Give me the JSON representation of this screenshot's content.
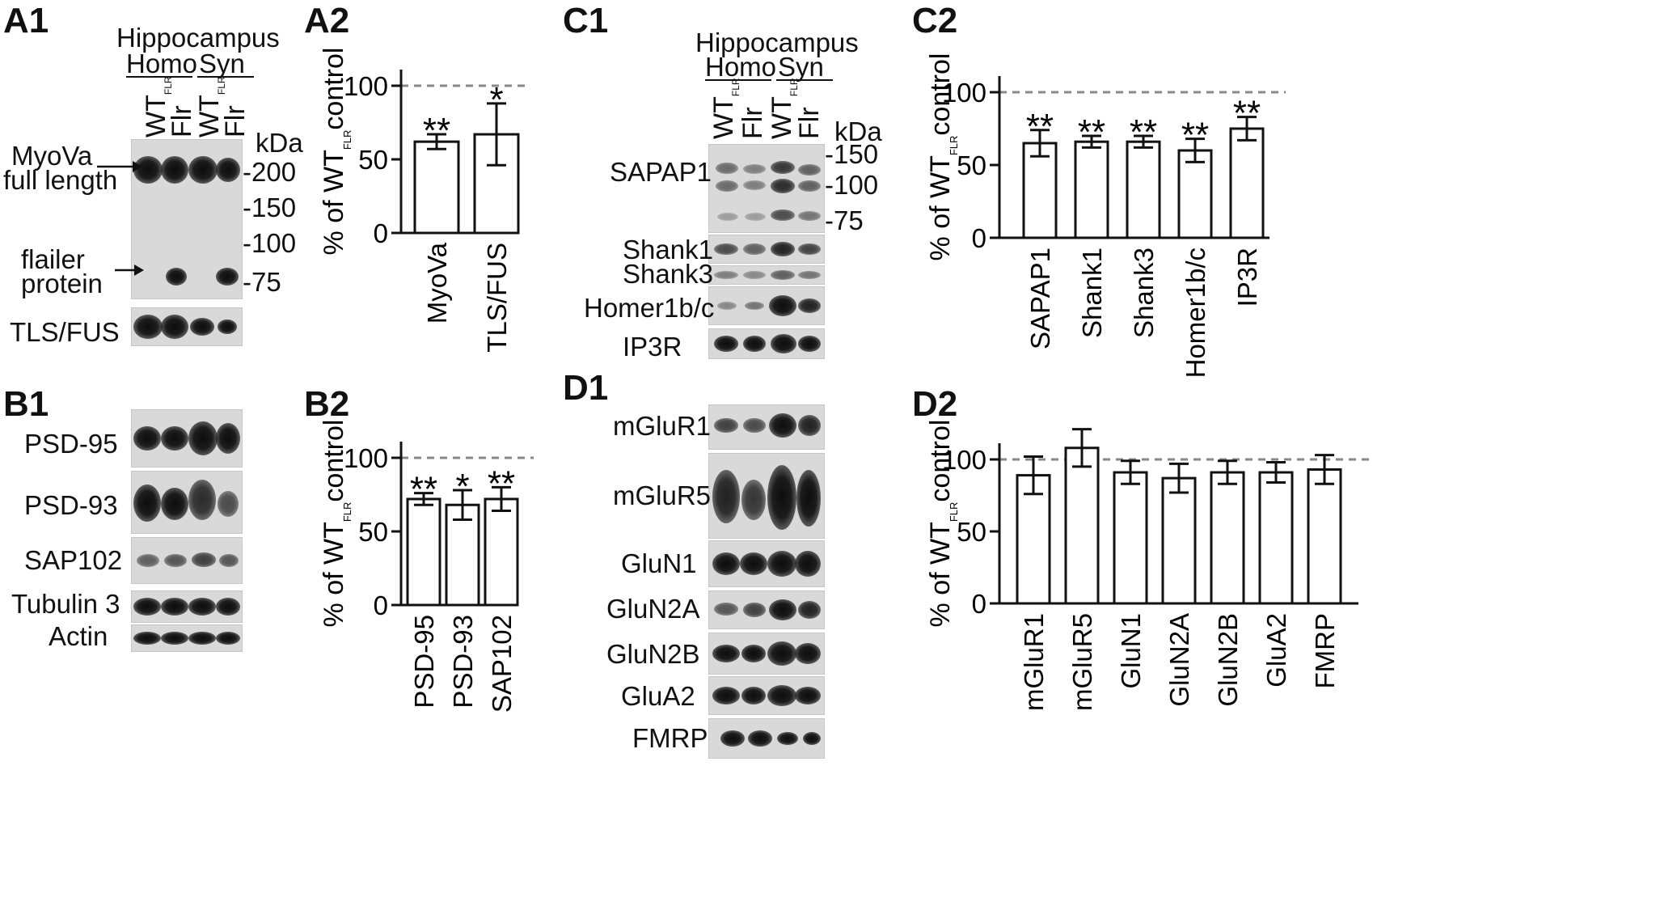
{
  "panels": {
    "A1": "A1",
    "A2": "A2",
    "B1": "B1",
    "B2": "B2",
    "C1": "C1",
    "C2": "C2",
    "D1": "D1",
    "D2": "D2"
  },
  "blots": {
    "region": "Hippocampus",
    "group_homo": "Homo",
    "group_syn": "Syn",
    "lane_wt": "WT",
    "lane_wt_sub": "FLR",
    "lane_flr": "Flr",
    "kda": "kDa",
    "a1_markers": [
      "200",
      "150",
      "100",
      "75"
    ],
    "c1_markers": [
      "150",
      "100",
      "75"
    ],
    "a1_labels": [
      "MyoVa",
      "full length",
      "flailer",
      "protein",
      "TLS/FUS"
    ],
    "b1_labels": [
      "PSD-95",
      "PSD-93",
      "SAP102",
      "Tubulin 3",
      "Actin"
    ],
    "c1_labels": [
      "SAPAP1",
      "Shank1",
      "Shank3",
      "Homer1b/c",
      "IP3R"
    ],
    "d1_labels": [
      "mGluR1",
      "mGluR5",
      "GluN1",
      "GluN2A",
      "GluN2B",
      "GluA2",
      "FMRP"
    ]
  },
  "axis_label": {
    "prefix": "% of WT",
    "sub": "FLR",
    "suffix": "control"
  },
  "chart_data": [
    {
      "id": "A2",
      "type": "bar",
      "categories": [
        "MyoVa",
        "TLS/FUS"
      ],
      "values": [
        62,
        67
      ],
      "errors": [
        5,
        21
      ],
      "significance": [
        "**",
        "*"
      ],
      "ylim": [
        0,
        100
      ],
      "yticks": [
        0,
        50,
        100
      ],
      "reference_line": 100
    },
    {
      "id": "B2",
      "type": "bar",
      "categories": [
        "PSD-95",
        "PSD-93",
        "SAP102"
      ],
      "values": [
        72,
        68,
        72
      ],
      "errors": [
        4,
        10,
        8
      ],
      "significance": [
        "**",
        "*",
        "**"
      ],
      "ylim": [
        0,
        100
      ],
      "yticks": [
        0,
        50,
        100
      ],
      "reference_line": 100
    },
    {
      "id": "C2",
      "type": "bar",
      "categories": [
        "SAPAP1",
        "Shank1",
        "Shank3",
        "Homer1b/c",
        "IP3R"
      ],
      "values": [
        65,
        66,
        66,
        60,
        75
      ],
      "errors": [
        9,
        4,
        4,
        8,
        8
      ],
      "significance": [
        "**",
        "**",
        "**",
        "**",
        "**"
      ],
      "ylim": [
        0,
        100
      ],
      "yticks": [
        0,
        50,
        100
      ],
      "reference_line": 100
    },
    {
      "id": "D2",
      "type": "bar",
      "categories": [
        "mGluR1",
        "mGluR5",
        "GluN1",
        "GluN2A",
        "GluN2B",
        "GluA2",
        "FMRP"
      ],
      "values": [
        89,
        108,
        91,
        87,
        91,
        91,
        93
      ],
      "errors": [
        13,
        13,
        8,
        10,
        8,
        7,
        10
      ],
      "significance": [
        "",
        "",
        "",
        "",
        "",
        "",
        ""
      ],
      "ylim": [
        0,
        100
      ],
      "yticks": [
        0,
        50,
        100
      ],
      "reference_line": 100
    }
  ]
}
